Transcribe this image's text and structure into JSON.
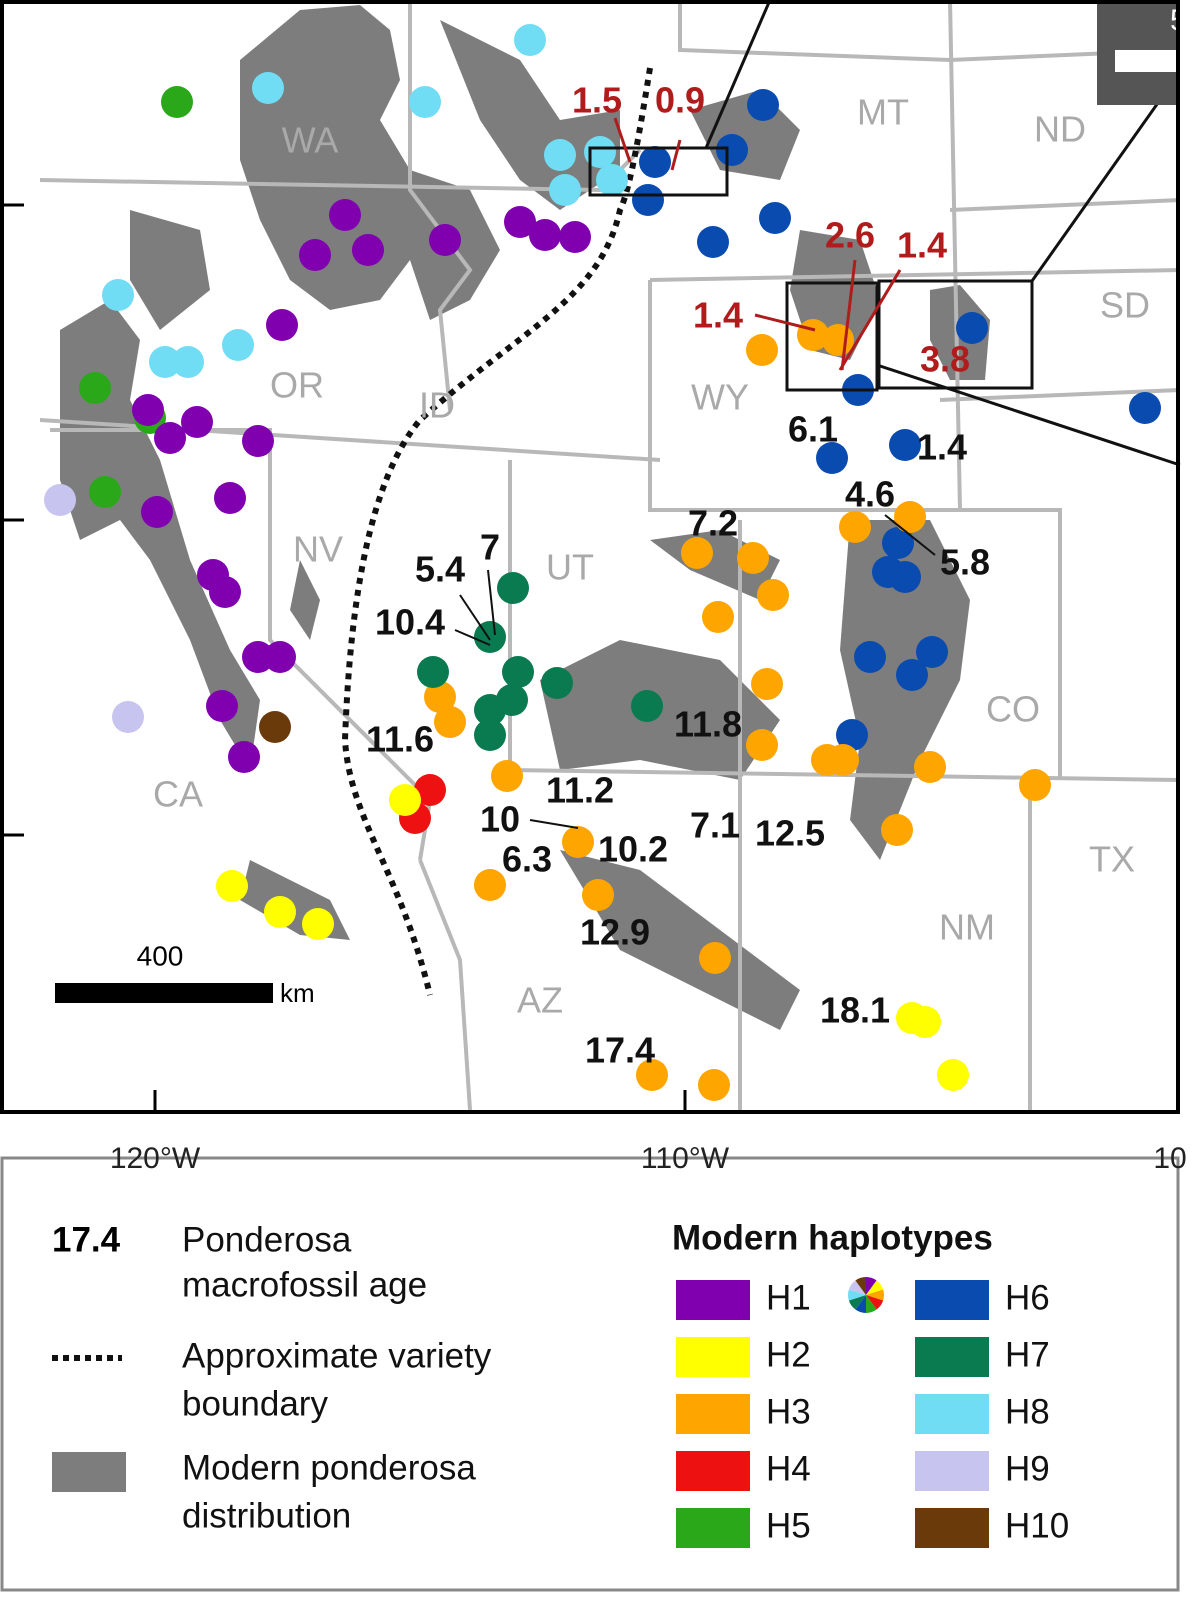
{
  "map": {
    "states": [
      "WA",
      "MT",
      "ND",
      "SD",
      "OR",
      "ID",
      "WY",
      "NV",
      "UT",
      "CO",
      "CA",
      "AZ",
      "NM",
      "TX"
    ],
    "ages": [
      {
        "value": 1.5,
        "color": "#b01c1c"
      },
      {
        "value": 0.9,
        "color": "#b01c1c"
      },
      {
        "value": 2.6,
        "color": "#b01c1c"
      },
      {
        "value": 1.4,
        "color": "#b01c1c"
      },
      {
        "value": 1.4,
        "color": "#b01c1c"
      },
      {
        "value": 3.8,
        "color": "#b01c1c"
      },
      {
        "value": 6.1,
        "color": "#111111"
      },
      {
        "value": 1.4,
        "color": "#111111"
      },
      {
        "value": 4.6,
        "color": "#111111"
      },
      {
        "value": 5.8,
        "color": "#111111"
      },
      {
        "value": 7.2,
        "color": "#111111"
      },
      {
        "value": 5.4,
        "color": "#111111"
      },
      {
        "value": 7,
        "color": "#111111"
      },
      {
        "value": 10.4,
        "color": "#111111"
      },
      {
        "value": 11.8,
        "color": "#111111"
      },
      {
        "value": 11.6,
        "color": "#111111"
      },
      {
        "value": 11.2,
        "color": "#111111"
      },
      {
        "value": 10,
        "color": "#111111"
      },
      {
        "value": 10.2,
        "color": "#111111"
      },
      {
        "value": 6.3,
        "color": "#111111"
      },
      {
        "value": 7.1,
        "color": "#111111"
      },
      {
        "value": 12.5,
        "color": "#111111"
      },
      {
        "value": 12.9,
        "color": "#111111"
      },
      {
        "value": 18.1,
        "color": "#111111"
      },
      {
        "value": 17.4,
        "color": "#111111"
      }
    ],
    "longitudes": [
      "120°W",
      "110°W",
      "10"
    ],
    "inset_label": "5",
    "scale": {
      "value": 400,
      "unit": "km"
    }
  },
  "legend": {
    "age_example": "17.4",
    "age_text": [
      "Ponderosa",
      "macrofossil age"
    ],
    "boundary_text": [
      "Approximate variety",
      "boundary"
    ],
    "distribution_text": [
      "Modern ponderosa",
      "distribution"
    ],
    "haplotypes_title": "Modern haplotypes",
    "haplotypes": [
      {
        "name": "H1",
        "color": "#8000b0"
      },
      {
        "name": "H2",
        "color": "#ffff00"
      },
      {
        "name": "H3",
        "color": "#ffa500"
      },
      {
        "name": "H4",
        "color": "#ee1111"
      },
      {
        "name": "H5",
        "color": "#2aa81a"
      },
      {
        "name": "H6",
        "color": "#0a4bb0"
      },
      {
        "name": "H7",
        "color": "#0a7a50"
      },
      {
        "name": "H8",
        "color": "#70ddf5"
      },
      {
        "name": "H9",
        "color": "#c8c4f0"
      },
      {
        "name": "H10",
        "color": "#6b3a0a"
      }
    ]
  }
}
